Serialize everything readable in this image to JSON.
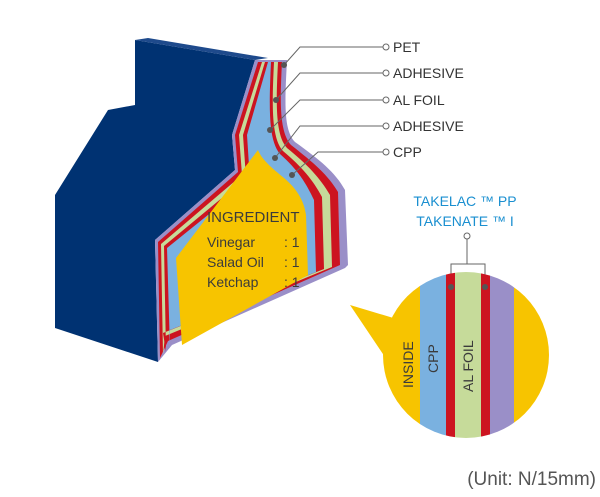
{
  "callouts": {
    "pet": "PET",
    "adhesive_outer": "ADHESIVE",
    "al_foil": "AL FOIL",
    "adhesive_inner": "ADHESIVE",
    "cpp": "CPP"
  },
  "ingredient": {
    "heading": "INGREDIENT",
    "rows": [
      {
        "name": "Vinegar",
        "ratio": ": 1"
      },
      {
        "name": "Salad Oil",
        "ratio": ": 1"
      },
      {
        "name": "Ketchap",
        "ratio": ": 1"
      }
    ]
  },
  "adhesive_products": {
    "line1": "TAKELAC ™ PP",
    "line2": "TAKENATE ™ I"
  },
  "zoom_labels": {
    "inside": "INSIDE",
    "cpp": "CPP",
    "al_foil": "AL FOIL"
  },
  "unit": "(Unit: N/15mm)",
  "colors": {
    "navy": "#003272",
    "pet": "#9a8fc8",
    "cpp": "#7ab1e0",
    "al_foil": "#c6db9a",
    "adhesive": "#cc1420",
    "content": "#f7c400",
    "accent_text": "#1a8fd0"
  }
}
